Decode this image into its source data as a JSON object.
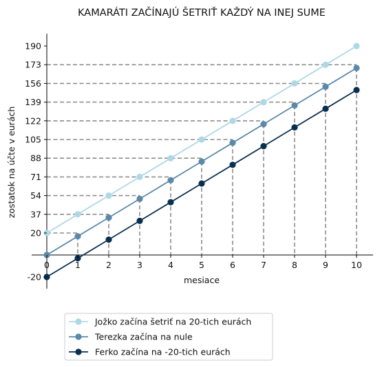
{
  "chart_data": {
    "type": "line",
    "title": "KAMARÁTI ZAČÍNAJÚ ŠETRIŤ KAŽDÝ NA INEJ SUME",
    "xlabel": "mesiace",
    "ylabel": "zostatok na účte v eurách",
    "x": [
      0,
      1,
      2,
      3,
      4,
      5,
      6,
      7,
      8,
      9,
      10
    ],
    "xlim": [
      0,
      10
    ],
    "ylim": [
      -20,
      190
    ],
    "xticks": [
      0,
      1,
      2,
      3,
      4,
      5,
      6,
      7,
      8,
      9,
      10
    ],
    "yticks": [
      -20,
      20,
      37,
      54,
      71,
      88,
      105,
      122,
      139,
      156,
      173,
      190
    ],
    "legend_position": "bottom-left, below plot",
    "series": [
      {
        "name": "Jožko začína šetriť na 20-tich eurách",
        "color": "#add8e6",
        "values": [
          20,
          37,
          54,
          71,
          88,
          105,
          122,
          139,
          156,
          173,
          190
        ]
      },
      {
        "name": "Terezka začína na nule",
        "color": "#5b89aa",
        "values": [
          0,
          17,
          34,
          51,
          68,
          85,
          102,
          119,
          136,
          153,
          170
        ]
      },
      {
        "name": "Ferko začína na -20-tich eurách",
        "color": "#0a3050",
        "values": [
          -20,
          -3,
          14,
          31,
          48,
          65,
          82,
          99,
          116,
          133,
          150
        ]
      }
    ],
    "guides": {
      "color": "#8c8c8c",
      "horizontal_at_series": "Jožko začína šetriť na 20-tich eurách",
      "vertical_from_series": "Terezka začína na nule"
    }
  }
}
